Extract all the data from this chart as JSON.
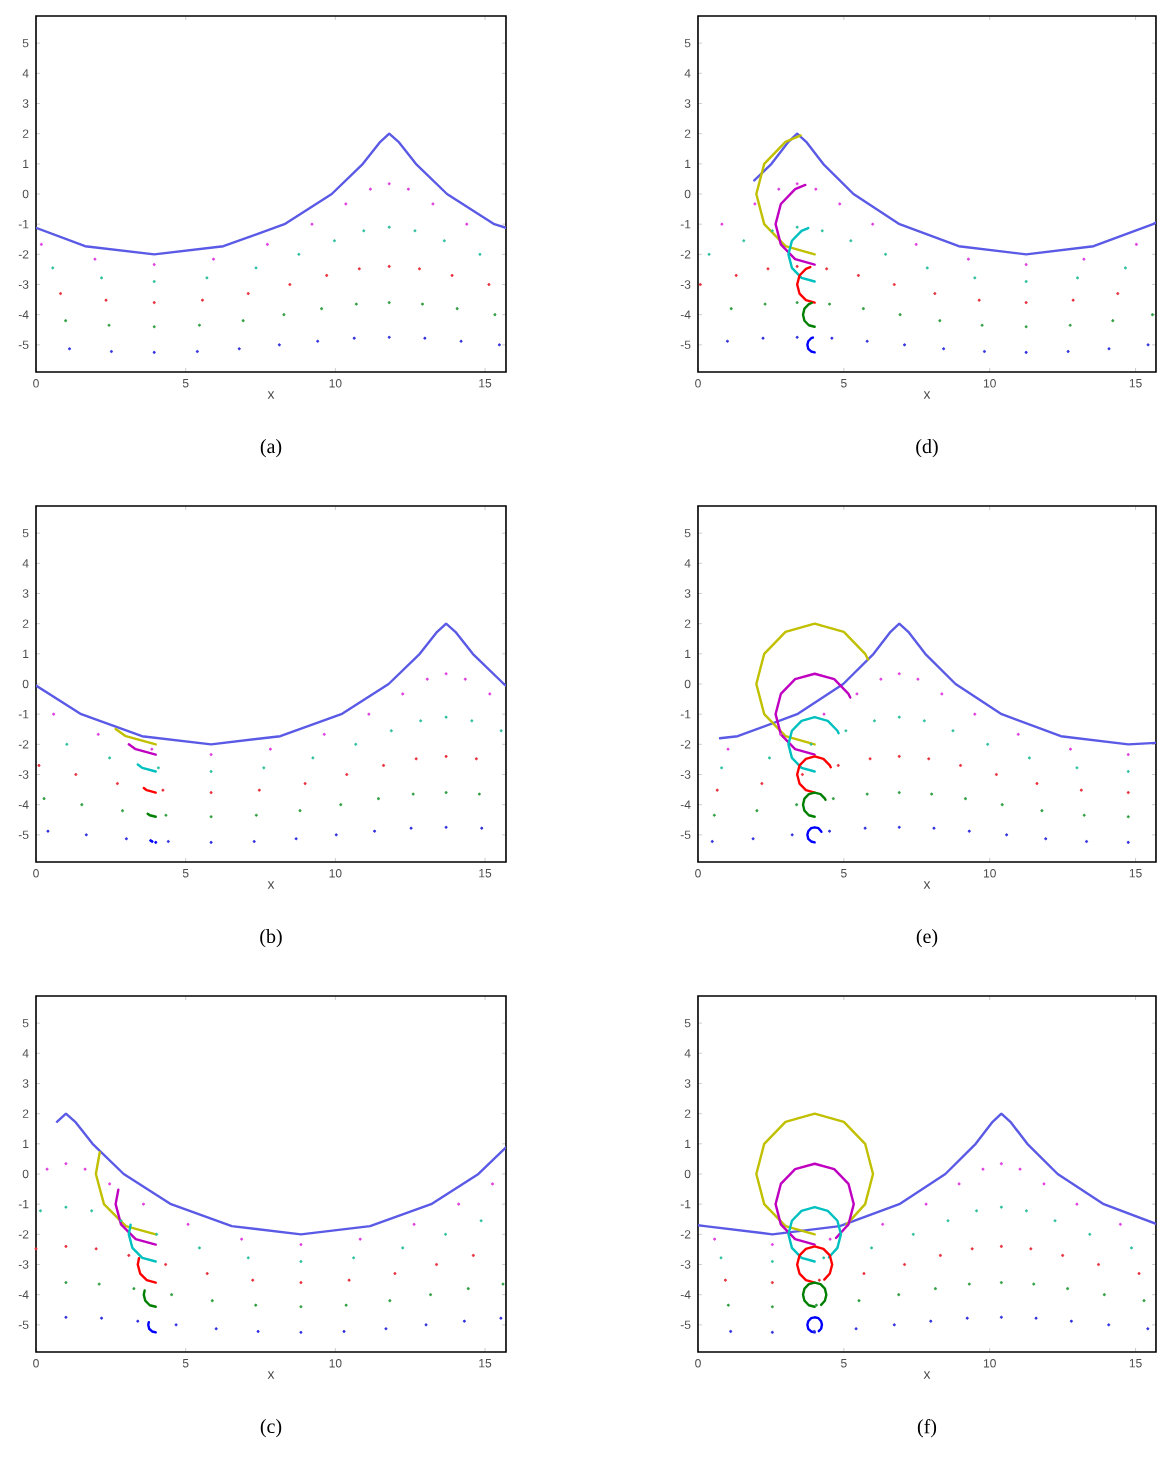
{
  "chart_data": [
    {
      "type": "line",
      "xlabel": "x",
      "annotations": [
        "(a)"
      ],
      "xlim": [
        0,
        15.7
      ],
      "ylim": [
        -5.9,
        5.9
      ],
      "xticks": [
        0,
        5,
        10,
        15
      ],
      "yticks": [
        -5,
        -4,
        -3,
        -2,
        -1,
        0,
        1,
        2,
        3,
        4,
        5
      ],
      "series": [
        {
          "color": "#5a5ae6",
          "x": [
            0,
            1.64,
            3.95,
            6.26,
            8.3,
            9.88,
            10.92,
            11.5,
            11.8,
            12.11,
            12.69,
            13.73,
            15.31,
            15.7
          ],
          "values": [
            -1.12,
            -1.73,
            -2,
            -1.73,
            -1,
            0,
            1,
            1.73,
            2,
            1.73,
            1,
            0,
            -1,
            -1.12
          ]
        },
        {
          "type": "scatter",
          "marker": "circle",
          "color": "#e040e0",
          "x": [
            11.8,
            12.44,
            13.26,
            14.39,
            0.18,
            1.97,
            3.95,
            5.93,
            7.73,
            9.22,
            10.35,
            11.17
          ],
          "values": [
            0.34,
            0.16,
            -0.33,
            -1,
            -1.67,
            -2.16,
            -2.34,
            -2.16,
            -1.67,
            -1,
            -0.33,
            0.16
          ]
        },
        {
          "type": "scatter",
          "marker": "circle",
          "color": "#30c0a0",
          "x": [
            11.8,
            12.66,
            13.64,
            14.83,
            0.56,
            2.19,
            3.95,
            5.71,
            7.35,
            8.78,
            9.97,
            10.95
          ],
          "values": [
            -1.1,
            -1.22,
            -1.55,
            -2,
            -2.45,
            -2.78,
            -2.9,
            -2.78,
            -2.45,
            -2,
            -1.55,
            -1.22
          ]
        },
        {
          "type": "scatter",
          "marker": "circle",
          "color": "#e8303c",
          "x": [
            11.8,
            12.81,
            13.9,
            15.13,
            0.82,
            2.34,
            3.95,
            5.56,
            7.09,
            8.48,
            9.71,
            10.8
          ],
          "values": [
            -2.4,
            -2.48,
            -2.7,
            -3,
            -3.3,
            -3.52,
            -3.6,
            -3.52,
            -3.3,
            -3,
            -2.7,
            -2.48
          ]
        },
        {
          "type": "scatter",
          "marker": "circle",
          "color": "#30a040",
          "x": [
            11.8,
            12.91,
            14.07,
            15.33,
            0.99,
            2.44,
            3.95,
            5.46,
            6.92,
            8.28,
            9.54,
            10.7
          ],
          "values": [
            -3.6,
            -3.65,
            -3.8,
            -4,
            -4.2,
            -4.35,
            -4.4,
            -4.35,
            -4.2,
            -4,
            -3.8,
            -3.65
          ]
        },
        {
          "type": "scatter",
          "marker": "circle",
          "color": "#3030e0",
          "x": [
            11.8,
            12.99,
            14.2,
            15.48,
            1.12,
            2.52,
            3.95,
            5.39,
            6.79,
            8.13,
            9.41,
            10.63
          ],
          "values": [
            -4.75,
            -4.78,
            -4.88,
            -5,
            -5.13,
            -5.22,
            -5.25,
            -5.22,
            -5.13,
            -5,
            -4.88,
            -4.78
          ]
        }
      ]
    },
    {
      "type": "line",
      "xlabel": "x",
      "annotations": [
        "(d)"
      ],
      "xlim": [
        0,
        15.7
      ],
      "ylim": [
        -5.9,
        5.9
      ],
      "xticks": [
        0,
        5,
        10,
        15
      ],
      "yticks": [
        -5,
        -4,
        -3,
        -2,
        -1,
        0,
        1,
        2,
        3,
        4,
        5
      ],
      "series": [
        {
          "color": "#5a5ae6",
          "x": [
            1.93,
            2.52,
            3.1,
            3.4,
            3.71,
            4.29,
            5.33,
            6.91,
            8.94,
            11.25,
            13.56,
            15.6,
            15.7
          ],
          "values": [
            0.45,
            1,
            1.73,
            2,
            1.73,
            1,
            0,
            -1,
            -1.73,
            -2,
            -1.73,
            -1,
            -0.95
          ]
        },
        {
          "type": "scatter",
          "marker": "circle",
          "color": "#e040e0",
          "x": [
            3.4,
            4.04,
            4.86,
            5.99,
            7.48,
            9.27,
            11.25,
            13.23,
            15.03,
            0.82,
            1.95,
            2.77
          ],
          "values": [
            0.34,
            0.16,
            -0.33,
            -1,
            -1.67,
            -2.16,
            -2.34,
            -2.16,
            -1.67,
            -1,
            -0.33,
            0.16
          ]
        },
        {
          "type": "scatter",
          "marker": "circle",
          "color": "#30c0a0",
          "x": [
            3.4,
            4.26,
            5.24,
            6.43,
            7.86,
            9.49,
            11.25,
            13.01,
            14.65,
            0.38,
            1.57,
            2.55
          ],
          "values": [
            -1.1,
            -1.22,
            -1.55,
            -2,
            -2.45,
            -2.78,
            -2.9,
            -2.78,
            -2.45,
            -2,
            -1.55,
            -1.22
          ]
        },
        {
          "type": "scatter",
          "marker": "circle",
          "color": "#e8303c",
          "x": [
            3.4,
            4.41,
            5.5,
            6.73,
            8.12,
            9.64,
            11.25,
            12.86,
            14.39,
            0.08,
            1.31,
            2.4
          ],
          "values": [
            -2.4,
            -2.48,
            -2.7,
            -3,
            -3.3,
            -3.52,
            -3.6,
            -3.52,
            -3.3,
            -3,
            -2.7,
            -2.48
          ]
        },
        {
          "type": "scatter",
          "marker": "circle",
          "color": "#30a040",
          "x": [
            3.4,
            4.51,
            5.67,
            6.93,
            8.29,
            9.74,
            11.25,
            12.76,
            14.22,
            15.58,
            1.14,
            2.3
          ],
          "values": [
            -3.6,
            -3.65,
            -3.8,
            -4,
            -4.2,
            -4.35,
            -4.4,
            -4.35,
            -4.2,
            -4,
            -3.8,
            -3.65
          ]
        },
        {
          "type": "scatter",
          "marker": "circle",
          "color": "#3030e0",
          "x": [
            3.4,
            4.59,
            5.8,
            7.08,
            8.42,
            9.82,
            11.25,
            12.69,
            14.09,
            15.43,
            1.01,
            2.23
          ],
          "values": [
            -4.75,
            -4.78,
            -4.88,
            -5,
            -5.13,
            -5.22,
            -5.25,
            -5.22,
            -5.13,
            -5,
            -4.88,
            -4.78
          ]
        },
        {
          "color": "#c0c000",
          "x": [
            4,
            3,
            2.27,
            2,
            2.27,
            3,
            3.52
          ],
          "values": [
            -2,
            -1.73,
            -1,
            0,
            1,
            1.73,
            1.94
          ]
        },
        {
          "color": "#c000c0",
          "x": [
            4,
            3.33,
            2.84,
            2.66,
            2.84,
            3.33,
            3.68
          ],
          "values": [
            -2.34,
            -2.16,
            -1.67,
            -1,
            -0.33,
            0.16,
            0.3
          ]
        },
        {
          "color": "#00c0c0",
          "x": [
            4,
            3.55,
            3.22,
            3.1,
            3.22,
            3.55,
            3.78
          ],
          "values": [
            -2.9,
            -2.78,
            -2.45,
            -2,
            -1.55,
            -1.22,
            -1.13
          ]
        },
        {
          "color": "#ff0000",
          "x": [
            4,
            3.7,
            3.48,
            3.4,
            3.48,
            3.7,
            3.85
          ],
          "values": [
            -3.6,
            -3.52,
            -3.3,
            -3,
            -2.7,
            -2.48,
            -2.42
          ]
        },
        {
          "color": "#008000",
          "x": [
            4,
            3.8,
            3.65,
            3.6,
            3.65,
            3.8,
            3.9
          ],
          "values": [
            -4.4,
            -4.35,
            -4.2,
            -4,
            -3.8,
            -3.65,
            -3.61
          ]
        },
        {
          "color": "#0000ff",
          "x": [
            4,
            3.88,
            3.78,
            3.75,
            3.78,
            3.88,
            3.94
          ],
          "values": [
            -5.25,
            -5.22,
            -5.13,
            -5,
            -4.88,
            -4.78,
            -4.76
          ]
        }
      ]
    },
    {
      "type": "line",
      "xlabel": "x",
      "annotations": [
        "(b)"
      ],
      "xlim": [
        0,
        15.7
      ],
      "ylim": [
        -5.9,
        5.9
      ],
      "xticks": [
        0,
        5,
        10,
        15
      ],
      "yticks": [
        -5,
        -4,
        -3,
        -2,
        -1,
        0,
        1,
        2,
        3,
        4,
        5
      ],
      "series": [
        {
          "color": "#5a5ae6",
          "x": [
            0,
            1.51,
            3.54,
            5.85,
            8.16,
            10.2,
            11.78,
            12.82,
            13.4,
            13.7,
            14.01,
            14.59,
            15.63,
            15.7
          ],
          "values": [
            -0.05,
            -1,
            -1.73,
            -2,
            -1.73,
            -1,
            0,
            1,
            1.73,
            2,
            1.73,
            1,
            0,
            -0.05
          ]
        },
        {
          "type": "scatter",
          "marker": "circle",
          "color": "#e040e0",
          "x": [
            13.7,
            14.34,
            15.16,
            0.59,
            2.08,
            3.87,
            5.85,
            7.83,
            9.63,
            11.12,
            12.25,
            13.07
          ],
          "values": [
            0.34,
            0.16,
            -0.33,
            -1,
            -1.67,
            -2.16,
            -2.34,
            -2.16,
            -1.67,
            -1,
            -0.33,
            0.16
          ]
        },
        {
          "type": "scatter",
          "marker": "circle",
          "color": "#30c0a0",
          "x": [
            13.7,
            14.56,
            15.54,
            1.03,
            2.46,
            4.09,
            5.85,
            7.61,
            9.25,
            10.68,
            11.87,
            12.85
          ],
          "values": [
            -1.1,
            -1.22,
            -1.55,
            -2,
            -2.45,
            -2.78,
            -2.9,
            -2.78,
            -2.45,
            -2,
            -1.55,
            -1.22
          ]
        },
        {
          "type": "scatter",
          "marker": "circle",
          "color": "#e8303c",
          "x": [
            13.7,
            14.71,
            0.1,
            1.33,
            2.72,
            4.24,
            5.85,
            7.46,
            8.99,
            10.38,
            11.61,
            12.7
          ],
          "values": [
            -2.4,
            -2.48,
            -2.7,
            -3,
            -3.3,
            -3.52,
            -3.6,
            -3.52,
            -3.3,
            -3,
            -2.7,
            -2.48
          ]
        },
        {
          "type": "scatter",
          "marker": "circle",
          "color": "#30a040",
          "x": [
            13.7,
            14.81,
            0.27,
            1.53,
            2.89,
            4.34,
            5.85,
            7.36,
            8.82,
            10.18,
            11.44,
            12.6
          ],
          "values": [
            -3.6,
            -3.65,
            -3.8,
            -4,
            -4.2,
            -4.35,
            -4.4,
            -4.35,
            -4.2,
            -4,
            -3.8,
            -3.65
          ]
        },
        {
          "type": "scatter",
          "marker": "circle",
          "color": "#3030e0",
          "x": [
            13.7,
            14.89,
            0.4,
            1.68,
            3.02,
            4.42,
            5.85,
            7.29,
            8.69,
            10.03,
            11.31,
            12.53
          ],
          "values": [
            -4.75,
            -4.78,
            -4.88,
            -5,
            -5.13,
            -5.22,
            -5.25,
            -5.22,
            -5.13,
            -5,
            -4.88,
            -4.78
          ]
        },
        {
          "color": "#c0c000",
          "x": [
            4,
            3,
            2.66
          ],
          "values": [
            -2,
            -1.73,
            -1.49
          ]
        },
        {
          "color": "#c000c0",
          "x": [
            4,
            3.33,
            3.1
          ],
          "values": [
            -2.34,
            -2.16,
            -2
          ]
        },
        {
          "color": "#00c0c0",
          "x": [
            4,
            3.55,
            3.4
          ],
          "values": [
            -2.9,
            -2.78,
            -2.67
          ]
        },
        {
          "color": "#ff0000",
          "x": [
            4,
            3.7,
            3.6
          ],
          "values": [
            -3.6,
            -3.52,
            -3.45
          ]
        },
        {
          "color": "#008000",
          "x": [
            4,
            3.8,
            3.73
          ],
          "values": [
            -4.4,
            -4.35,
            -4.3
          ]
        },
        {
          "type": "scatter",
          "marker": "circle",
          "color": "#0000ff",
          "x": [
            4,
            3.88,
            3.83
          ],
          "values": [
            -5.25,
            -5.22,
            -5.19
          ]
        }
      ]
    },
    {
      "type": "line",
      "xlabel": "x",
      "annotations": [
        "(e)"
      ],
      "xlim": [
        0,
        15.7
      ],
      "ylim": [
        -5.9,
        5.9
      ],
      "xticks": [
        0,
        5,
        10,
        15
      ],
      "yticks": [
        -5,
        -4,
        -3,
        -2,
        -1,
        0,
        1,
        2,
        3,
        4,
        5
      ],
      "series": [
        {
          "color": "#5a5ae6",
          "x": [
            0.75,
            1.36,
            3.4,
            4.98,
            6.02,
            6.6,
            6.9,
            7.21,
            7.79,
            8.83,
            10.41,
            12.44,
            14.75,
            15.7
          ],
          "values": [
            -1.8,
            -1.73,
            -1,
            0,
            1,
            1.73,
            2,
            1.73,
            1,
            0,
            -1,
            -1.73,
            -2,
            -1.95
          ]
        },
        {
          "type": "scatter",
          "marker": "circle",
          "color": "#e040e0",
          "x": [
            6.9,
            7.54,
            8.36,
            9.49,
            10.98,
            12.77,
            14.75,
            1.03,
            2.83,
            4.32,
            5.45,
            6.27
          ],
          "values": [
            0.34,
            0.16,
            -0.33,
            -1,
            -1.67,
            -2.16,
            -2.34,
            -2.16,
            -1.67,
            -1,
            -0.33,
            0.16
          ]
        },
        {
          "type": "scatter",
          "marker": "circle",
          "color": "#30c0a0",
          "x": [
            6.9,
            7.76,
            8.74,
            9.93,
            11.36,
            12.99,
            14.75,
            0.81,
            2.45,
            3.88,
            5.07,
            6.05
          ],
          "values": [
            -1.1,
            -1.22,
            -1.55,
            -2,
            -2.45,
            -2.78,
            -2.9,
            -2.78,
            -2.45,
            -2,
            -1.55,
            -1.22
          ]
        },
        {
          "type": "scatter",
          "marker": "circle",
          "color": "#e8303c",
          "x": [
            6.9,
            7.91,
            9.0,
            10.23,
            11.62,
            13.14,
            14.75,
            0.66,
            2.19,
            3.58,
            4.81,
            5.9
          ],
          "values": [
            -2.4,
            -2.48,
            -2.7,
            -3,
            -3.3,
            -3.52,
            -3.6,
            -3.52,
            -3.3,
            -3,
            -2.7,
            -2.48
          ]
        },
        {
          "type": "scatter",
          "marker": "circle",
          "color": "#30a040",
          "x": [
            6.9,
            8.01,
            9.17,
            10.43,
            11.79,
            13.24,
            14.75,
            0.56,
            2.02,
            3.38,
            4.64,
            5.8
          ],
          "values": [
            -3.6,
            -3.65,
            -3.8,
            -4,
            -4.2,
            -4.35,
            -4.4,
            -4.35,
            -4.2,
            -4,
            -3.8,
            -3.65
          ]
        },
        {
          "type": "scatter",
          "marker": "circle",
          "color": "#3030e0",
          "x": [
            6.9,
            8.09,
            9.3,
            10.58,
            11.92,
            13.32,
            14.75,
            0.49,
            1.89,
            3.23,
            4.51,
            5.73
          ],
          "values": [
            -4.75,
            -4.78,
            -4.88,
            -5,
            -5.13,
            -5.22,
            -5.25,
            -5.22,
            -5.13,
            -5,
            -4.88,
            -4.78
          ]
        },
        {
          "color": "#c0c000",
          "x": [
            4,
            3,
            2.27,
            2,
            2.27,
            3,
            4,
            5,
            5.73,
            5.83
          ],
          "values": [
            -2,
            -1.73,
            -1,
            0,
            1,
            1.73,
            2,
            1.73,
            1,
            0.81
          ]
        },
        {
          "color": "#c000c0",
          "x": [
            4,
            3.33,
            2.84,
            2.66,
            2.84,
            3.33,
            4,
            4.67,
            5.16,
            5.22
          ],
          "values": [
            -2.34,
            -2.16,
            -1.67,
            -1,
            -0.33,
            0.16,
            0.34,
            0.16,
            -0.33,
            -0.45
          ]
        },
        {
          "color": "#00c0c0",
          "x": [
            4,
            3.55,
            3.22,
            3.1,
            3.22,
            3.55,
            4,
            4.45,
            4.78,
            4.82
          ],
          "values": [
            -2.9,
            -2.78,
            -2.45,
            -2,
            -1.55,
            -1.22,
            -1.1,
            -1.22,
            -1.55,
            -1.63
          ]
        },
        {
          "color": "#ff0000",
          "x": [
            4,
            3.7,
            3.48,
            3.4,
            3.48,
            3.7,
            4,
            4.3,
            4.52,
            4.55
          ],
          "values": [
            -3.6,
            -3.52,
            -3.3,
            -3,
            -2.7,
            -2.48,
            -2.4,
            -2.48,
            -2.7,
            -2.76
          ]
        },
        {
          "color": "#008000",
          "x": [
            4,
            3.8,
            3.65,
            3.6,
            3.65,
            3.8,
            4,
            4.2,
            4.35,
            4.37
          ],
          "values": [
            -4.4,
            -4.35,
            -4.2,
            -4,
            -3.8,
            -3.65,
            -3.6,
            -3.65,
            -3.8,
            -3.84
          ]
        },
        {
          "color": "#0000ff",
          "x": [
            4,
            3.88,
            3.78,
            3.75,
            3.78,
            3.88,
            4,
            4.13,
            4.22,
            4.23
          ],
          "values": [
            -5.25,
            -5.22,
            -5.13,
            -5,
            -4.88,
            -4.78,
            -4.75,
            -4.78,
            -4.88,
            -4.9
          ]
        }
      ]
    },
    {
      "type": "line",
      "xlabel": "x",
      "annotations": [
        "(c)"
      ],
      "xlim": [
        0,
        15.7
      ],
      "ylim": [
        -5.9,
        5.9
      ],
      "xticks": [
        0,
        5,
        10,
        15
      ],
      "yticks": [
        -5,
        -4,
        -3,
        -2,
        -1,
        0,
        1,
        2,
        3,
        4,
        5
      ],
      "series": [
        {
          "color": "#5a5ae6",
          "x": [
            0.7,
            1,
            1.31,
            1.89,
            2.93,
            4.51,
            6.54,
            8.85,
            11.16,
            13.2,
            14.78,
            15.7
          ],
          "values": [
            1.73,
            2,
            1.73,
            1,
            0,
            -1,
            -1.73,
            -2,
            -1.73,
            -1,
            0,
            0.88
          ]
        },
        {
          "type": "scatter",
          "marker": "circle",
          "color": "#e040e0",
          "x": [
            1.0,
            1.64,
            2.46,
            3.59,
            5.08,
            6.87,
            8.85,
            10.83,
            12.63,
            14.12,
            15.25,
            0.37
          ],
          "values": [
            0.34,
            0.16,
            -0.33,
            -1,
            -1.67,
            -2.16,
            -2.34,
            -2.16,
            -1.67,
            -1,
            -0.33,
            0.16
          ]
        },
        {
          "type": "scatter",
          "marker": "circle",
          "color": "#30c0a0",
          "x": [
            1.0,
            1.86,
            2.84,
            4.03,
            5.46,
            7.09,
            8.85,
            10.61,
            12.25,
            13.68,
            14.87,
            0.15
          ],
          "values": [
            -1.1,
            -1.22,
            -1.55,
            -2,
            -2.45,
            -2.78,
            -2.9,
            -2.78,
            -2.45,
            -2,
            -1.55,
            -1.22
          ]
        },
        {
          "type": "scatter",
          "marker": "circle",
          "color": "#e8303c",
          "x": [
            1.0,
            2.01,
            3.1,
            4.33,
            5.72,
            7.24,
            8.85,
            10.46,
            11.99,
            13.38,
            14.61,
            0.0
          ],
          "values": [
            -2.4,
            -2.48,
            -2.7,
            -3,
            -3.3,
            -3.52,
            -3.6,
            -3.52,
            -3.3,
            -3,
            -2.7,
            -2.48
          ]
        },
        {
          "type": "scatter",
          "marker": "circle",
          "color": "#30a040",
          "x": [
            1.0,
            2.11,
            3.27,
            4.53,
            5.89,
            7.34,
            8.85,
            10.36,
            11.82,
            13.18,
            14.44,
            15.6
          ],
          "values": [
            -3.6,
            -3.65,
            -3.8,
            -4,
            -4.2,
            -4.35,
            -4.4,
            -4.35,
            -4.2,
            -4,
            -3.8,
            -3.65
          ]
        },
        {
          "type": "scatter",
          "marker": "circle",
          "color": "#3030e0",
          "x": [
            1.0,
            2.19,
            3.4,
            4.68,
            6.02,
            7.42,
            8.85,
            10.29,
            11.69,
            13.03,
            14.31,
            15.53
          ],
          "values": [
            -4.75,
            -4.78,
            -4.88,
            -5,
            -5.13,
            -5.22,
            -5.25,
            -5.22,
            -5.13,
            -5,
            -4.88,
            -4.78
          ]
        },
        {
          "color": "#c0c000",
          "x": [
            4,
            3,
            2.27,
            2,
            2.13
          ],
          "values": [
            -2,
            -1.73,
            -1,
            0,
            0.72
          ]
        },
        {
          "color": "#c000c0",
          "x": [
            4,
            3.33,
            2.84,
            2.66,
            2.75
          ],
          "values": [
            -2.34,
            -2.16,
            -1.67,
            -1,
            -0.52
          ]
        },
        {
          "color": "#00c0c0",
          "x": [
            4,
            3.55,
            3.22,
            3.1,
            3.16
          ],
          "values": [
            -2.9,
            -2.78,
            -2.45,
            -2,
            -1.68
          ]
        },
        {
          "color": "#ff0000",
          "x": [
            4,
            3.7,
            3.48,
            3.4,
            3.44
          ],
          "values": [
            -3.6,
            -3.52,
            -3.3,
            -3,
            -2.79
          ]
        },
        {
          "color": "#008000",
          "x": [
            4,
            3.8,
            3.65,
            3.6,
            3.63
          ],
          "values": [
            -4.4,
            -4.35,
            -4.2,
            -4,
            -3.86
          ]
        },
        {
          "color": "#0000ff",
          "x": [
            4,
            3.88,
            3.78,
            3.75,
            3.77
          ],
          "values": [
            -5.25,
            -5.22,
            -5.13,
            -5,
            -4.91
          ]
        }
      ]
    },
    {
      "type": "line",
      "xlabel": "x",
      "annotations": [
        "(f)"
      ],
      "xlim": [
        0,
        15.7
      ],
      "ylim": [
        -5.9,
        5.9
      ],
      "xticks": [
        0,
        5,
        10,
        15
      ],
      "yticks": [
        -5,
        -4,
        -3,
        -2,
        -1,
        0,
        1,
        2,
        3,
        4,
        5
      ],
      "series": [
        {
          "color": "#5a5ae6",
          "x": [
            0,
            0.24,
            2.55,
            4.86,
            6.9,
            8.48,
            9.52,
            10.1,
            10.4,
            10.71,
            11.29,
            12.33,
            13.91,
            15.7
          ],
          "values": [
            -1.7,
            -1.73,
            -2,
            -1.73,
            -1,
            0,
            1,
            1.73,
            2,
            1.73,
            1,
            0,
            -1,
            -1.65
          ]
        },
        {
          "type": "scatter",
          "marker": "circle",
          "color": "#e040e0",
          "x": [
            10.4,
            11.04,
            11.86,
            12.99,
            14.48,
            0.57,
            2.55,
            4.53,
            6.33,
            7.82,
            8.95,
            9.77
          ],
          "values": [
            0.34,
            0.16,
            -0.33,
            -1,
            -1.67,
            -2.16,
            -2.34,
            -2.16,
            -1.67,
            -1,
            -0.33,
            0.16
          ]
        },
        {
          "type": "scatter",
          "marker": "circle",
          "color": "#30c0a0",
          "x": [
            10.4,
            11.26,
            12.24,
            13.43,
            14.86,
            0.79,
            2.55,
            4.31,
            5.95,
            7.38,
            8.57,
            9.55
          ],
          "values": [
            -1.1,
            -1.22,
            -1.55,
            -2,
            -2.45,
            -2.78,
            -2.9,
            -2.78,
            -2.45,
            -2,
            -1.55,
            -1.22
          ]
        },
        {
          "type": "scatter",
          "marker": "circle",
          "color": "#e8303c",
          "x": [
            10.4,
            11.41,
            12.5,
            13.73,
            15.12,
            0.94,
            2.55,
            4.16,
            5.69,
            7.08,
            8.31,
            9.4
          ],
          "values": [
            -2.4,
            -2.48,
            -2.7,
            -3,
            -3.3,
            -3.52,
            -3.6,
            -3.52,
            -3.3,
            -3,
            -2.7,
            -2.48
          ]
        },
        {
          "type": "scatter",
          "marker": "circle",
          "color": "#30a040",
          "x": [
            10.4,
            11.51,
            12.67,
            13.93,
            15.29,
            1.04,
            2.55,
            4.06,
            5.52,
            6.88,
            8.14,
            9.3
          ],
          "values": [
            -3.6,
            -3.65,
            -3.8,
            -4,
            -4.2,
            -4.35,
            -4.4,
            -4.35,
            -4.2,
            -4,
            -3.8,
            -3.65
          ]
        },
        {
          "type": "scatter",
          "marker": "circle",
          "color": "#3030e0",
          "x": [
            10.4,
            11.59,
            12.8,
            14.08,
            15.42,
            1.12,
            2.55,
            3.99,
            5.42,
            6.73,
            7.98,
            9.23
          ],
          "values": [
            -4.75,
            -4.78,
            -4.88,
            -5,
            -5.13,
            -5.22,
            -5.25,
            -5.22,
            -5.13,
            -5,
            -4.88,
            -4.78
          ]
        },
        {
          "color": "#c0c000",
          "x": [
            4,
            3,
            2.27,
            2,
            2.27,
            3,
            4,
            5,
            5.73,
            6,
            5.73,
            5.09
          ],
          "values": [
            -2,
            -1.73,
            -1,
            0,
            1,
            1.73,
            2,
            1.73,
            1,
            0,
            -1,
            -1.68
          ]
        },
        {
          "color": "#c000c0",
          "x": [
            4,
            3.33,
            2.84,
            2.66,
            2.84,
            3.33,
            4,
            4.67,
            5.16,
            5.34,
            5.16,
            4.73
          ],
          "values": [
            -2.34,
            -2.16,
            -1.67,
            -1,
            -0.33,
            0.16,
            0.34,
            0.16,
            -0.33,
            -1,
            -1.67,
            -2.12
          ]
        },
        {
          "color": "#00c0c0",
          "x": [
            4,
            3.55,
            3.22,
            3.1,
            3.22,
            3.55,
            4,
            4.45,
            4.78,
            4.9,
            4.78,
            4.49
          ],
          "values": [
            -2.9,
            -2.78,
            -2.45,
            -2,
            -1.55,
            -1.22,
            -1.1,
            -1.22,
            -1.55,
            -2,
            -2.45,
            -2.76
          ]
        },
        {
          "color": "#ff0000",
          "x": [
            4,
            3.7,
            3.48,
            3.4,
            3.48,
            3.7,
            4,
            4.3,
            4.52,
            4.6,
            4.52,
            4.33
          ],
          "values": [
            -3.6,
            -3.52,
            -3.3,
            -3,
            -2.7,
            -2.48,
            -2.4,
            -2.48,
            -2.7,
            -3,
            -3.3,
            -3.5
          ]
        },
        {
          "color": "#008000",
          "x": [
            4,
            3.8,
            3.65,
            3.6,
            3.65,
            3.8,
            4,
            4.2,
            4.35,
            4.4,
            4.35,
            4.22
          ],
          "values": [
            -4.4,
            -4.35,
            -4.2,
            -4,
            -3.8,
            -3.65,
            -3.6,
            -3.65,
            -3.8,
            -4,
            -4.2,
            -4.34
          ]
        },
        {
          "color": "#0000ff",
          "x": [
            4,
            3.88,
            3.78,
            3.75,
            3.78,
            3.88,
            4,
            4.13,
            4.22,
            4.25,
            4.22,
            4.14
          ],
          "values": [
            -5.25,
            -5.22,
            -5.13,
            -5,
            -4.88,
            -4.78,
            -4.75,
            -4.78,
            -4.88,
            -5,
            -5.13,
            -5.21
          ]
        }
      ]
    }
  ]
}
